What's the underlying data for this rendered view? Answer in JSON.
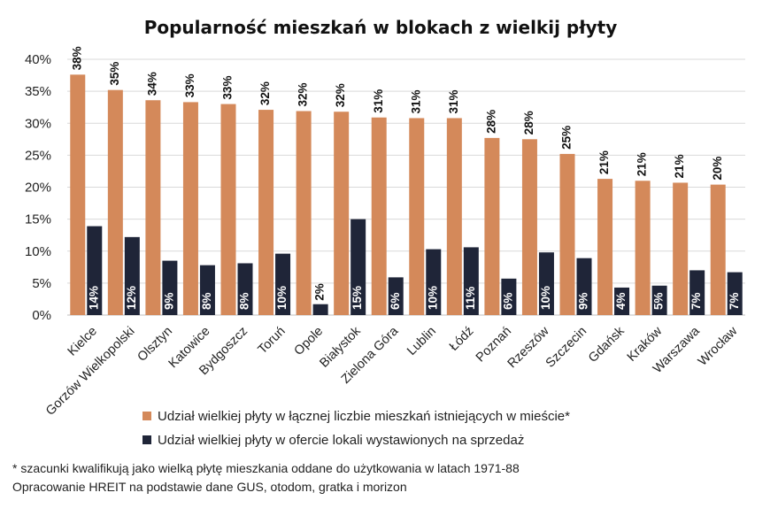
{
  "chart_data": {
    "type": "bar",
    "title": "Popularność mieszkań w blokach z wielkij płyty",
    "xlabel": "",
    "ylabel": "",
    "ylim": [
      0,
      40
    ],
    "yticks": [
      "0%",
      "5%",
      "10%",
      "15%",
      "20%",
      "25%",
      "30%",
      "35%",
      "40%"
    ],
    "grid": true,
    "legend_position": "bottom",
    "categories": [
      "Kielce",
      "Gorzów Wielkopolski",
      "Olsztyn",
      "Katowice",
      "Bydgoszcz",
      "Toruń",
      "Opole",
      "Białystok",
      "Zielona Góra",
      "Lublin",
      "Łódź",
      "Poznań",
      "Rzeszów",
      "Szczecin",
      "Gdańsk",
      "Kraków",
      "Warszawa",
      "Wrocław"
    ],
    "series": [
      {
        "name": "Udział wielkiej płyty w łącznej liczbie mieszkań istniejących w mieście*",
        "color": "#D4895A",
        "values": [
          37.6,
          35.2,
          33.6,
          33.3,
          33.0,
          32.1,
          31.9,
          31.8,
          30.9,
          30.8,
          30.8,
          27.7,
          27.5,
          25.2,
          21.3,
          21.0,
          20.7,
          20.4
        ],
        "labels": [
          "38%",
          "35%",
          "34%",
          "33%",
          "33%",
          "32%",
          "32%",
          "32%",
          "31%",
          "31%",
          "31%",
          "28%",
          "28%",
          "25%",
          "21%",
          "21%",
          "21%",
          "20%"
        ]
      },
      {
        "name": "Udział wielkiej płyty w ofercie lokali wystawionych na sprzedaż",
        "color": "#1F2538",
        "values": [
          13.9,
          12.2,
          8.5,
          7.8,
          8.1,
          9.6,
          1.7,
          15.0,
          5.9,
          10.3,
          10.6,
          5.7,
          9.8,
          8.9,
          4.3,
          4.6,
          7.0,
          6.7
        ],
        "labels": [
          "14%",
          "12%",
          "9%",
          "8%",
          "8%",
          "10%",
          "2%",
          "15%",
          "6%",
          "10%",
          "11%",
          "6%",
          "10%",
          "9%",
          "4%",
          "5%",
          "7%",
          "7%"
        ]
      }
    ]
  },
  "footnotes": {
    "note1": "* szacunki kwalifikują jako wielką płytę mieszkania oddane do użytkowania w latach 1971-88",
    "note2": "Opracowanie HREIT na podstawie dane GUS, otodom, gratka i morizon"
  }
}
